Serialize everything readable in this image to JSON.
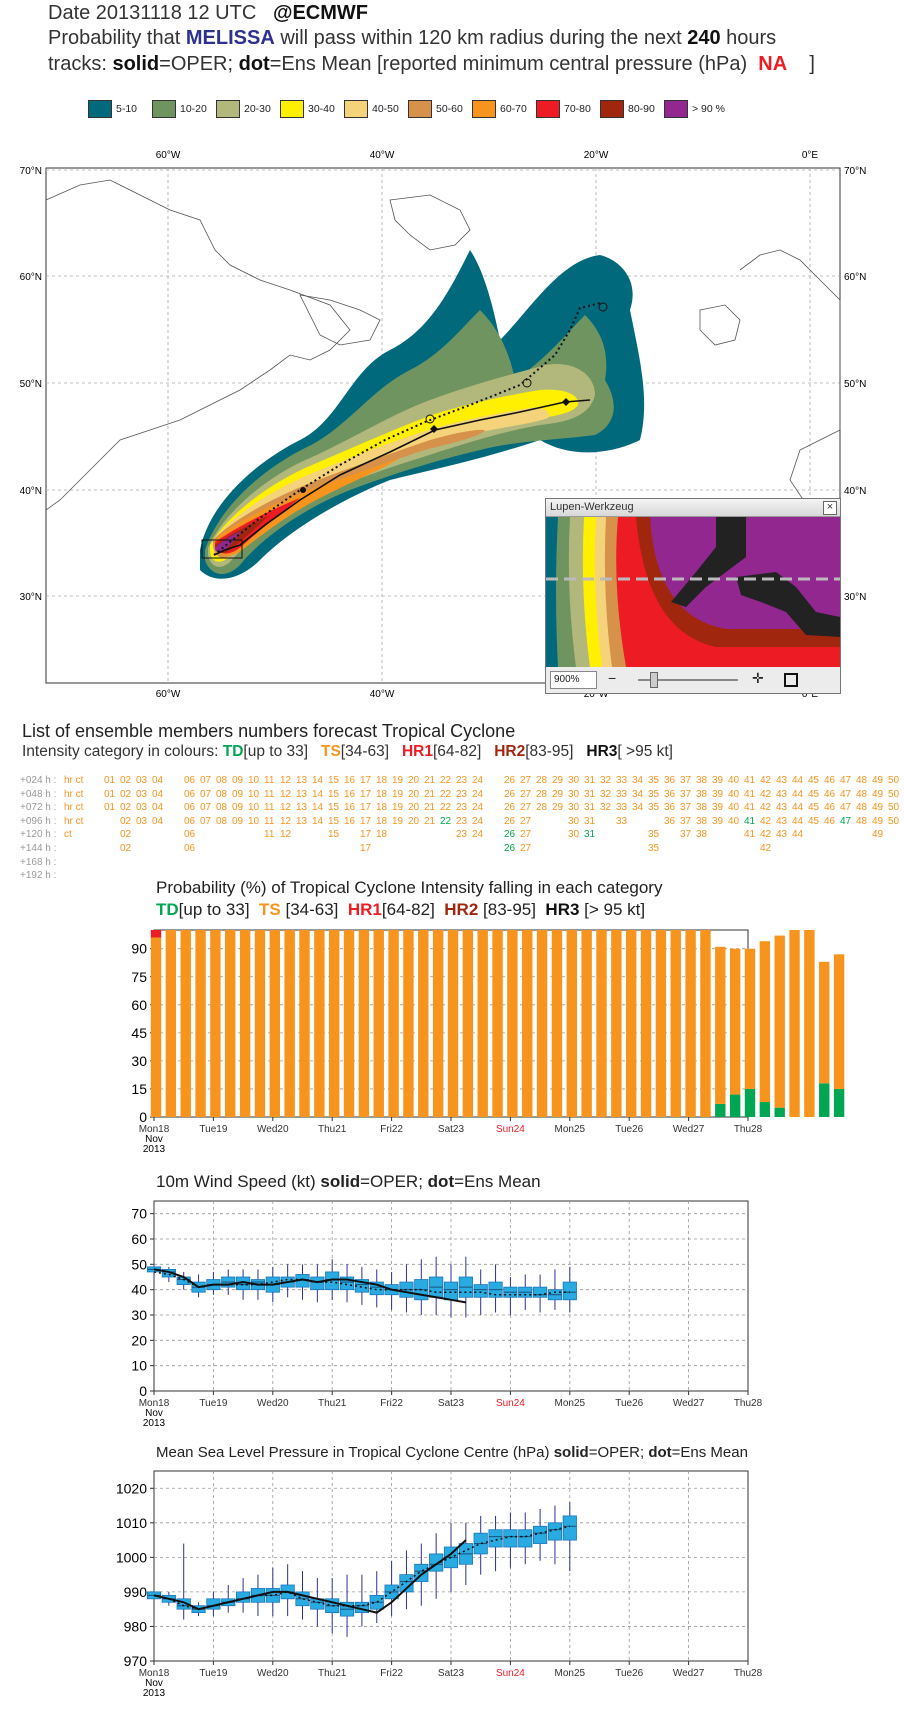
{
  "header": {
    "date_label": "Date 20131118 12 UTC",
    "source": "@ECMWF",
    "prob_prefix": "Probability that",
    "storm_name": "MELISSA",
    "prob_mid": "will pass within 120 km radius during the next",
    "hours": "240",
    "hours_suffix": "hours",
    "tracks_prefix": "tracks:",
    "solid": "solid",
    "solid_def": "=OPER;",
    "dot": "dot",
    "dot_def": "=Ens Mean [reported minimum central pressure (hPa)",
    "na": "NA",
    "close_bracket": "]"
  },
  "legend": [
    {
      "label": "5-10",
      "color": "#006a7c"
    },
    {
      "label": "10-20",
      "color": "#6f9460"
    },
    {
      "label": "20-30",
      "color": "#b2b87c"
    },
    {
      "label": "30-40",
      "color": "#ffef00"
    },
    {
      "label": "40-50",
      "color": "#f5d37a"
    },
    {
      "label": "50-60",
      "color": "#d6924a"
    },
    {
      "label": "60-70",
      "color": "#f7941d"
    },
    {
      "label": "70-80",
      "color": "#ed1c24"
    },
    {
      "label": "80-90",
      "color": "#a1260e"
    },
    {
      "label": "> 90 %",
      "color": "#92278f"
    }
  ],
  "map": {
    "lon_labels": [
      "60°W",
      "40°W",
      "20°W",
      "0°E"
    ],
    "lat_labels": [
      "70°N",
      "60°N",
      "50°N",
      "40°N",
      "30°N"
    ],
    "magnifier": {
      "title": "Lupen-Werkzeug",
      "zoom": "900%",
      "close": "×",
      "minus": "−",
      "plus": "✛"
    }
  },
  "ensemble": {
    "title": "List of ensemble members numbers forecast Tropical Cyclone",
    "cat_prefix": "Intensity category in colours:",
    "td": "TD",
    "td_range": "[up to 33]",
    "ts": "TS",
    "ts_range": "[34-63]",
    "hr1": "HR1",
    "hr1_range": "[64-82]",
    "hr2": "HR2",
    "hr2_range": "[83-95]",
    "hr3": "HR3",
    "hr3_range": "[ >95 kt]",
    "rows": [
      {
        "label": "+024 h :",
        "hr": "hr ct",
        "members": "01 02 03 04 _ 06 07 08 09 10 11 12 13 14 15 16 17 18 19 20 21 22 23 24 _ 26 27 28 29 30 31 32 33 34 35 36 37 38 39 40 41 42 43 44 45 46 47 48 49 50",
        "td": ""
      },
      {
        "label": "+048 h :",
        "hr": "hr ct",
        "members": "01 02 03 04 _ 06 07 08 09 10 11 12 13 14 15 16 17 18 19 20 21 22 23 24 _ 26 27 28 29 30 31 32 33 34 35 36 37 38 39 40 41 42 43 44 45 46 47 48 49 50",
        "td": ""
      },
      {
        "label": "+072 h :",
        "hr": "hr ct",
        "members": "01 02 03 04 _ 06 07 08 09 10 11 12 13 14 15 16 17 18 19 20 21 22 23 24 _ 26 27 28 29 30 31 32 33 34 35 36 37 38 39 40 41 42 43 44 45 46 47 48 49 50",
        "td": ""
      },
      {
        "label": "+096 h :",
        "hr": "hr ct",
        "members": "_ 02 03 04 _ 06 07 08 09 10 11 12 13 14 15 16 17 18 19 20 21 22 23 24 _ 26 27 _ _ 30 31 _ 33 _ _ 36 37 38 39 40 41 42 43 44 45 46 47 48 49 50",
        "td": "22 41 47"
      },
      {
        "label": "+120 h :",
        "hr": "ct",
        "members": "_ 02 _ _ _ 06 _ _ _ _ 11 12 _ _ 15 _ 17 18 _ _ _ _ 23 24 _ 26 27 _ _ 30 31 _ _ _ 35 _ 37 38 _ _ 41 42 43 44 _ _ _ _ 49 _",
        "td": "26 31"
      },
      {
        "label": "+144 h :",
        "hr": "",
        "members": "_ 02 _ _ _ 06 _ _ _ _ _ _ _ _ _ _ 17 _ _ _ _ _ _ _ _ 26 27 _ _ _ _ _ _ _ 35 _ _ _ _ _ _ 42 _ _ _ _ _ _ _ _",
        "td": "26"
      },
      {
        "label": "+168 h :",
        "hr": "",
        "members": "",
        "td": ""
      },
      {
        "label": "+192 h :",
        "hr": "",
        "members": "",
        "td": ""
      }
    ]
  },
  "prob_chart": {
    "title": "Probability (%) of Tropical Cyclone Intensity falling in each category",
    "td": "TD",
    "td_range": "[up to 33]",
    "ts": "TS",
    "ts_range": "[34-63]",
    "hr1": "HR1",
    "hr1_range": "[64-82]",
    "hr2": "HR2",
    "hr2_range": "[83-95]",
    "hr3": "HR3",
    "hr3_range": "[> 95 kt]"
  },
  "wind_chart": {
    "title_pre": "10m Wind Speed (kt)",
    "solid": "solid",
    "solid_def": "=OPER;",
    "dot": "dot",
    "dot_def": "=Ens Mean"
  },
  "mslp_chart": {
    "title_pre": "Mean Sea Level Pressure in Tropical Cyclone Centre (hPa)",
    "solid": "solid",
    "solid_def": "=OPER;",
    "dot": "dot",
    "dot_def": "=Ens Mean"
  },
  "x_axis": {
    "days": [
      "Mon18",
      "Tue19",
      "Wed20",
      "Thu21",
      "Fri22",
      "Sat23",
      "Sun24",
      "Mon25",
      "Tue26",
      "Wed27",
      "Thu28"
    ],
    "month": "Nov",
    "year": "2013",
    "highlight_color": "#ed1c24",
    "highlight_day": "Sun24"
  },
  "chart_data": [
    {
      "type": "bar",
      "title": "Probability (%) of Tropical Cyclone Intensity falling in each category",
      "x_unit": "forecast step (6-hourly from Mon18 12 UTC)",
      "ylim": [
        0,
        100
      ],
      "yticks": [
        0,
        15,
        30,
        45,
        60,
        75,
        90
      ],
      "grid": true,
      "series": [
        {
          "name": "TD",
          "color": "#00a651",
          "values": [
            0,
            0,
            0,
            0,
            0,
            0,
            0,
            0,
            0,
            0,
            0,
            0,
            0,
            0,
            0,
            0,
            0,
            0,
            0,
            0,
            0,
            0,
            0,
            0,
            0,
            0,
            0,
            0,
            0,
            0,
            0,
            0,
            0,
            0,
            0,
            0,
            0,
            0,
            7,
            12,
            15,
            8,
            5,
            0,
            0,
            18,
            15
          ]
        },
        {
          "name": "TS",
          "color": "#f7941d",
          "values": [
            96,
            100,
            100,
            100,
            100,
            100,
            100,
            100,
            100,
            100,
            100,
            100,
            100,
            100,
            100,
            100,
            100,
            100,
            100,
            100,
            100,
            100,
            100,
            100,
            100,
            100,
            100,
            100,
            100,
            100,
            100,
            100,
            100,
            100,
            100,
            100,
            100,
            100,
            84,
            78,
            75,
            86,
            92,
            100,
            100,
            65,
            72
          ]
        },
        {
          "name": "HR1",
          "color": "#ed1c24",
          "values": [
            4,
            0,
            0,
            0,
            0,
            0,
            0,
            0,
            0,
            0,
            0,
            0,
            0,
            0,
            0,
            0,
            0,
            0,
            0,
            0,
            0,
            0,
            0,
            0,
            0,
            0,
            0,
            0,
            0,
            0,
            0,
            0,
            0,
            0,
            0,
            0,
            0,
            0,
            0,
            0,
            0,
            0,
            0,
            0,
            0,
            0,
            0
          ]
        }
      ]
    },
    {
      "type": "line",
      "title": "10m Wind Speed (kt)",
      "ylim": [
        0,
        75
      ],
      "yticks": [
        0,
        10,
        20,
        30,
        40,
        50,
        60,
        70
      ],
      "series": [
        {
          "name": "OPER",
          "style": "solid",
          "values": [
            48,
            47,
            45,
            41,
            42,
            42,
            43,
            42,
            42,
            43,
            44,
            43,
            44,
            44,
            43,
            42,
            40,
            39,
            38,
            37,
            36,
            35
          ]
        },
        {
          "name": "Ens Mean",
          "style": "dot",
          "values": [
            47,
            46,
            44,
            41,
            42,
            42,
            42,
            42,
            43,
            44,
            44,
            43,
            43,
            42,
            41,
            40,
            40,
            40,
            40,
            39,
            39,
            39,
            39,
            38,
            38,
            38,
            38,
            39,
            39
          ]
        }
      ],
      "boxes": [
        [
          44,
          47,
          48,
          49,
          50
        ],
        [
          43,
          45,
          47,
          48,
          49
        ],
        [
          40,
          42,
          44,
          45,
          47
        ],
        [
          37,
          39,
          41,
          43,
          46
        ],
        [
          38,
          40,
          42,
          44,
          47
        ],
        [
          38,
          41,
          43,
          45,
          48
        ],
        [
          36,
          40,
          42,
          45,
          48
        ],
        [
          36,
          40,
          43,
          44,
          48
        ],
        [
          35,
          39,
          42,
          45,
          49
        ],
        [
          37,
          41,
          43,
          45,
          50
        ],
        [
          36,
          41,
          44,
          46,
          50
        ],
        [
          35,
          40,
          43,
          45,
          50
        ],
        [
          36,
          40,
          44,
          47,
          52
        ],
        [
          35,
          40,
          43,
          45,
          50
        ],
        [
          34,
          39,
          42,
          44,
          49
        ],
        [
          33,
          38,
          41,
          43,
          48
        ],
        [
          32,
          38,
          40,
          42,
          47
        ],
        [
          31,
          37,
          40,
          43,
          50
        ],
        [
          30,
          36,
          40,
          44,
          52
        ],
        [
          30,
          37,
          41,
          45,
          53
        ],
        [
          29,
          36,
          40,
          43,
          50
        ],
        [
          29,
          37,
          41,
          45,
          53
        ],
        [
          30,
          37,
          40,
          42,
          48
        ],
        [
          31,
          37,
          40,
          43,
          50
        ],
        [
          30,
          37,
          39,
          41,
          45
        ],
        [
          32,
          37,
          39,
          41,
          46
        ],
        [
          31,
          37,
          38,
          41,
          46
        ],
        [
          32,
          36,
          38,
          40,
          48
        ],
        [
          31,
          36,
          39,
          43,
          49
        ]
      ]
    },
    {
      "type": "line",
      "title": "Mean Sea Level Pressure in Tropical Cyclone Centre (hPa)",
      "ylim": [
        970,
        1025
      ],
      "yticks": [
        970,
        980,
        990,
        1000,
        1010,
        1020
      ],
      "series": [
        {
          "name": "OPER",
          "style": "solid",
          "values": [
            989,
            988,
            987,
            985,
            986,
            987,
            988,
            989,
            990,
            990,
            989,
            988,
            987,
            986,
            985,
            984,
            987,
            991,
            995,
            998,
            1001,
            1005
          ]
        },
        {
          "name": "Ens Mean",
          "style": "dot",
          "values": [
            989,
            988,
            986,
            985,
            986,
            987,
            988,
            989,
            989,
            990,
            988,
            987,
            986,
            986,
            986,
            987,
            990,
            993,
            996,
            998,
            1000,
            1002,
            1004,
            1005,
            1006,
            1006,
            1007,
            1008,
            1009
          ]
        }
      ],
      "boxes": [
        [
          988,
          988,
          989,
          990,
          990
        ],
        [
          986,
          987,
          988,
          989,
          990
        ],
        [
          982,
          985,
          986,
          988,
          1004
        ],
        [
          983,
          984,
          985,
          986,
          987
        ],
        [
          983,
          985,
          986,
          988,
          990
        ],
        [
          984,
          986,
          987,
          988,
          992
        ],
        [
          984,
          987,
          988,
          990,
          994
        ],
        [
          983,
          987,
          989,
          991,
          995
        ],
        [
          983,
          987,
          989,
          991,
          997
        ],
        [
          983,
          988,
          990,
          992,
          998
        ],
        [
          982,
          986,
          988,
          990,
          996
        ],
        [
          980,
          985,
          987,
          988,
          994
        ],
        [
          978,
          984,
          986,
          988,
          994
        ],
        [
          977,
          983,
          985,
          987,
          995
        ],
        [
          980,
          984,
          986,
          987,
          995
        ],
        [
          981,
          985,
          987,
          989,
          996
        ],
        [
          983,
          988,
          990,
          992,
          999
        ],
        [
          985,
          990,
          993,
          995,
          1002
        ],
        [
          986,
          993,
          996,
          998,
          1004
        ],
        [
          988,
          996,
          998,
          1001,
          1007
        ],
        [
          990,
          997,
          1000,
          1003,
          1010
        ],
        [
          992,
          998,
          1001,
          1004,
          1010
        ],
        [
          995,
          1001,
          1004,
          1007,
          1012
        ],
        [
          996,
          1003,
          1006,
          1008,
          1012
        ],
        [
          997,
          1003,
          1006,
          1008,
          1013
        ],
        [
          998,
          1003,
          1006,
          1008,
          1013
        ],
        [
          999,
          1004,
          1007,
          1009,
          1014
        ],
        [
          998,
          1005,
          1008,
          1010,
          1015
        ],
        [
          996,
          1005,
          1009,
          1012,
          1016
        ]
      ]
    }
  ]
}
